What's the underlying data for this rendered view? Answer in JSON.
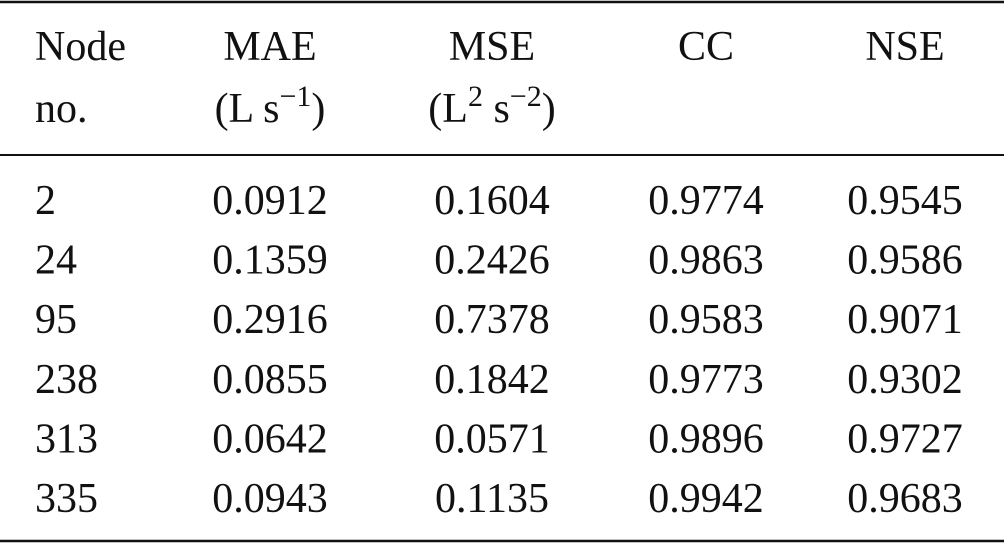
{
  "table": {
    "headers": [
      {
        "lines": [
          "Node",
          "no."
        ]
      },
      {
        "lines": [
          "MAE"
        ],
        "unit": [
          {
            "text": "(L s"
          },
          {
            "sup": "−1"
          },
          {
            "text": ")"
          }
        ]
      },
      {
        "lines": [
          "MSE"
        ],
        "unit": [
          {
            "text": "(L"
          },
          {
            "sup": "2"
          },
          {
            "text": " s"
          },
          {
            "sup": "−2"
          },
          {
            "text": ")"
          }
        ]
      },
      {
        "lines": [
          "CC"
        ]
      },
      {
        "lines": [
          "NSE"
        ]
      }
    ],
    "rows": [
      [
        "2",
        "0.0912",
        "0.1604",
        "0.9774",
        "0.9545"
      ],
      [
        "24",
        "0.1359",
        "0.2426",
        "0.9863",
        "0.9586"
      ],
      [
        "95",
        "0.2916",
        "0.7378",
        "0.9583",
        "0.9071"
      ],
      [
        "238",
        "0.0855",
        "0.1842",
        "0.9773",
        "0.9302"
      ],
      [
        "313",
        "0.0642",
        "0.0571",
        "0.9896",
        "0.9727"
      ],
      [
        "335",
        "0.0943",
        "0.1135",
        "0.9942",
        "0.9683"
      ]
    ]
  }
}
